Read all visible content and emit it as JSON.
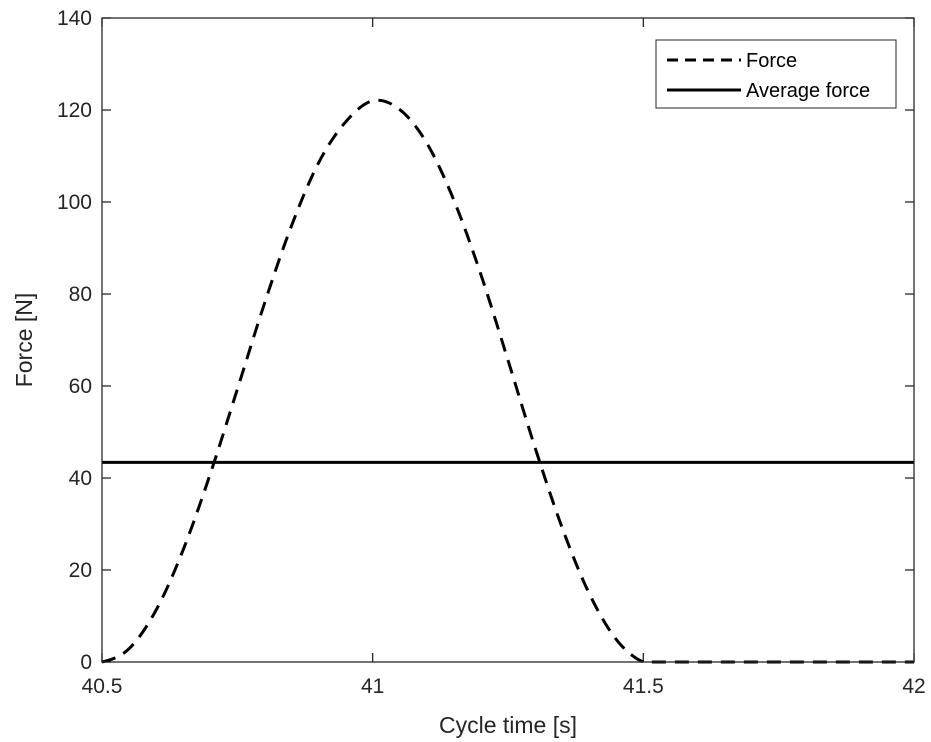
{
  "chart_data": {
    "type": "line",
    "title": "",
    "xlabel": "Cycle time [s]",
    "ylabel": "Force [N]",
    "xlim": [
      40.5,
      42
    ],
    "ylim": [
      0,
      140
    ],
    "xticks": [
      40.5,
      41,
      41.5,
      42
    ],
    "xtick_labels": [
      "40.5",
      "41",
      "41.5",
      "42"
    ],
    "yticks": [
      0,
      20,
      40,
      60,
      80,
      100,
      120,
      140
    ],
    "ytick_labels": [
      "0",
      "20",
      "40",
      "60",
      "80",
      "100",
      "120",
      "140"
    ],
    "grid": false,
    "legend_position": "top-right",
    "series": [
      {
        "name": "Force",
        "style": "dashed",
        "color": "#000000",
        "x": [
          40.5,
          40.55,
          40.6,
          40.65,
          40.7,
          40.75,
          40.8,
          40.85,
          40.9,
          40.95,
          41.0,
          41.05,
          41.1,
          41.15,
          41.2,
          41.25,
          41.3,
          41.35,
          41.4,
          41.45,
          41.5,
          41.6,
          41.7,
          41.8,
          41.9,
          42.0
        ],
        "y": [
          0,
          2.9,
          11.3,
          24.4,
          40.9,
          59.3,
          77.9,
          94.8,
          108.5,
          117.4,
          122,
          120.1,
          112.8,
          100.4,
          84.2,
          65.6,
          46.6,
          29.2,
          14.9,
          4.9,
          0,
          0,
          0,
          0,
          0,
          0
        ]
      },
      {
        "name": "Average force",
        "style": "solid",
        "color": "#000000",
        "x": [
          40.5,
          42.0
        ],
        "y": [
          43.4,
          43.4
        ]
      }
    ]
  }
}
